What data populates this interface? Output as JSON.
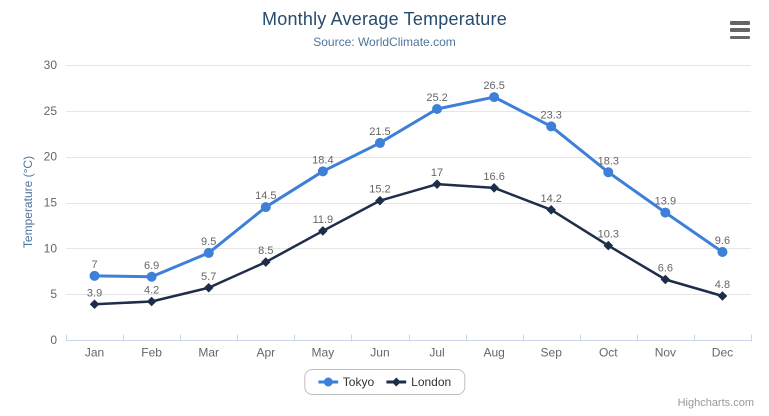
{
  "header": {
    "title": "Monthly Average Temperature",
    "subtitle": "Source: WorldClimate.com"
  },
  "credits": {
    "label": "Highcharts.com"
  },
  "chart_data": {
    "type": "line",
    "title": "Monthly Average Temperature",
    "subtitle": "Source: WorldClimate.com",
    "categories": [
      "Jan",
      "Feb",
      "Mar",
      "Apr",
      "May",
      "Jun",
      "Jul",
      "Aug",
      "Sep",
      "Oct",
      "Nov",
      "Dec"
    ],
    "series": [
      {
        "name": "Tokyo",
        "color": "#3e7fd8",
        "marker": "circle",
        "values": [
          7,
          6.9,
          9.5,
          14.5,
          18.4,
          21.5,
          25.2,
          26.5,
          23.3,
          18.3,
          13.9,
          9.6
        ]
      },
      {
        "name": "London",
        "color": "#1e2d49",
        "marker": "diamond",
        "values": [
          3.9,
          4.2,
          5.7,
          8.5,
          11.9,
          15.2,
          17,
          16.6,
          14.2,
          10.3,
          6.6,
          4.8
        ]
      }
    ],
    "xlabel": "",
    "ylabel": "Temperature (°C)",
    "ylim": [
      0,
      30
    ],
    "ytick_step": 5,
    "grid": true,
    "data_labels": true,
    "legend_position": "bottom-center",
    "colors": {
      "title": "#274b6d",
      "subtitle": "#4d759e",
      "axis_title": "#4d759e",
      "axis_labels": "#666666",
      "data_labels": "#666666",
      "grid_line": "#e6e6e6",
      "axis_line": "#ccd6eb",
      "legend_text": "#333333",
      "legend_border": "#bfbfbf",
      "credits": "#999999",
      "menu_icon": "#666666"
    }
  }
}
